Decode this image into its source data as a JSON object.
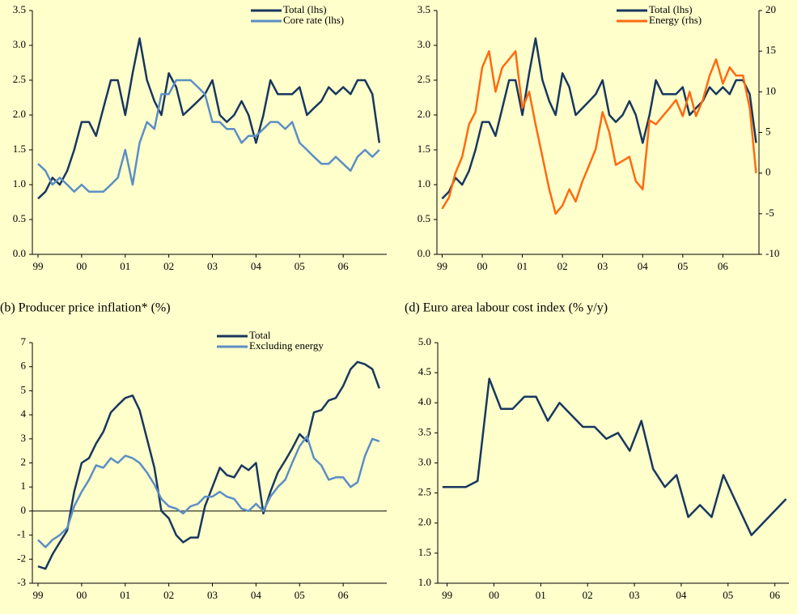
{
  "chart_data": [
    {
      "type": "line",
      "x": [
        1999.0,
        1999.17,
        1999.33,
        1999.5,
        1999.67,
        1999.83,
        2000.0,
        2000.17,
        2000.33,
        2000.5,
        2000.67,
        2000.83,
        2001.0,
        2001.17,
        2001.33,
        2001.5,
        2001.67,
        2001.83,
        2002.0,
        2002.17,
        2002.33,
        2002.5,
        2002.67,
        2002.83,
        2003.0,
        2003.17,
        2003.33,
        2003.5,
        2003.67,
        2003.83,
        2004.0,
        2004.17,
        2004.33,
        2004.5,
        2004.67,
        2004.83,
        2005.0,
        2005.17,
        2005.33,
        2005.5,
        2005.67,
        2005.83,
        2006.0,
        2006.17,
        2006.33,
        2006.5,
        2006.67,
        2006.83
      ],
      "series": [
        {
          "name": "Total (lhs)",
          "color": "#17375e",
          "values": [
            0.8,
            0.9,
            1.1,
            1.0,
            1.2,
            1.5,
            1.9,
            1.9,
            1.7,
            2.1,
            2.5,
            2.5,
            2.0,
            2.6,
            3.1,
            2.5,
            2.2,
            2.0,
            2.6,
            2.4,
            2.0,
            2.1,
            2.2,
            2.3,
            2.5,
            2.0,
            1.9,
            2.0,
            2.2,
            2.0,
            1.6,
            2.0,
            2.5,
            2.3,
            2.3,
            2.3,
            2.4,
            2.0,
            2.1,
            2.2,
            2.4,
            2.3,
            2.4,
            2.3,
            2.5,
            2.5,
            2.3,
            1.6
          ]
        },
        {
          "name": "Core rate (lhs)",
          "color": "#5b8ec5",
          "values": [
            1.3,
            1.2,
            1.0,
            1.1,
            1.0,
            0.9,
            1.0,
            0.9,
            0.9,
            0.9,
            1.0,
            1.1,
            1.5,
            1.0,
            1.6,
            1.9,
            1.8,
            2.3,
            2.3,
            2.5,
            2.5,
            2.5,
            2.4,
            2.3,
            1.9,
            1.9,
            1.8,
            1.8,
            1.6,
            1.7,
            1.7,
            1.8,
            1.9,
            1.9,
            1.8,
            1.9,
            1.6,
            1.5,
            1.4,
            1.3,
            1.3,
            1.4,
            1.3,
            1.2,
            1.4,
            1.5,
            1.4,
            1.5
          ]
        }
      ],
      "xlim": [
        1998.87,
        2007.0
      ],
      "xticks": [
        {
          "value": 1999,
          "label": "99"
        },
        {
          "value": 2000,
          "label": "00"
        },
        {
          "value": 2001,
          "label": "01"
        },
        {
          "value": 2002,
          "label": "02"
        },
        {
          "value": 2003,
          "label": "03"
        },
        {
          "value": 2004,
          "label": "04"
        },
        {
          "value": 2005,
          "label": "05"
        },
        {
          "value": 2006,
          "label": "06"
        }
      ],
      "ylim": [
        0,
        3.5
      ],
      "yticks": [
        {
          "value": 0,
          "label": "0.0"
        },
        0.5,
        {
          "value": 1,
          "label": "1.0"
        },
        1.5,
        {
          "value": 2,
          "label": "2.0"
        },
        2.5,
        {
          "value": 3,
          "label": "3.0"
        },
        3.5
      ]
    },
    {
      "type": "line",
      "x": [
        1999.0,
        1999.17,
        1999.33,
        1999.5,
        1999.67,
        1999.83,
        2000.0,
        2000.17,
        2000.33,
        2000.5,
        2000.67,
        2000.83,
        2001.0,
        2001.17,
        2001.33,
        2001.5,
        2001.67,
        2001.83,
        2002.0,
        2002.17,
        2002.33,
        2002.5,
        2002.67,
        2002.83,
        2003.0,
        2003.17,
        2003.33,
        2003.5,
        2003.67,
        2003.83,
        2004.0,
        2004.17,
        2004.33,
        2004.5,
        2004.67,
        2004.83,
        2005.0,
        2005.17,
        2005.33,
        2005.5,
        2005.67,
        2005.83,
        2006.0,
        2006.17,
        2006.33,
        2006.5,
        2006.67,
        2006.83
      ],
      "series": [
        {
          "name": "Total (lhs)",
          "color": "#17375e",
          "values": [
            0.8,
            0.9,
            1.1,
            1.0,
            1.2,
            1.5,
            1.9,
            1.9,
            1.7,
            2.1,
            2.5,
            2.5,
            2.0,
            2.6,
            3.1,
            2.5,
            2.2,
            2.0,
            2.6,
            2.4,
            2.0,
            2.1,
            2.2,
            2.3,
            2.5,
            2.0,
            1.9,
            2.0,
            2.2,
            2.0,
            1.6,
            2.0,
            2.5,
            2.3,
            2.3,
            2.3,
            2.4,
            2.0,
            2.1,
            2.2,
            2.4,
            2.3,
            2.4,
            2.3,
            2.5,
            2.5,
            2.3,
            1.6
          ]
        },
        {
          "name": "Energy (rhs)",
          "color": "#ff6a10",
          "axis": "y2",
          "values": [
            -4.4,
            -3,
            0,
            2,
            6,
            7.5,
            13,
            15,
            10,
            13,
            14,
            15,
            8,
            10,
            6,
            2,
            -2,
            -5,
            -4,
            -2,
            -3.5,
            -1,
            1,
            3,
            7.5,
            5,
            1,
            1.5,
            2,
            -1,
            -2,
            6.5,
            6,
            7,
            8,
            9,
            7,
            10,
            7,
            9,
            12,
            14,
            11,
            13,
            12,
            12,
            8,
            0
          ]
        }
      ],
      "xlim": [
        1998.87,
        2006.9
      ],
      "xticks": [
        {
          "value": 1999,
          "label": "99"
        },
        {
          "value": 2000,
          "label": "00"
        },
        {
          "value": 2001,
          "label": "01"
        },
        {
          "value": 2002,
          "label": "02"
        },
        {
          "value": 2003,
          "label": "03"
        },
        {
          "value": 2004,
          "label": "04"
        },
        {
          "value": 2005,
          "label": "05"
        },
        {
          "value": 2006,
          "label": "06"
        }
      ],
      "ylim": [
        0,
        3.5
      ],
      "yticks": [
        {
          "value": 0,
          "label": "0.0"
        },
        0.5,
        {
          "value": 1,
          "label": "1.0"
        },
        1.5,
        {
          "value": 2,
          "label": "2.0"
        },
        2.5,
        {
          "value": 3,
          "label": "3.0"
        },
        3.5
      ],
      "y2lim": [
        -10,
        20
      ],
      "y2ticks": [
        -10,
        -5,
        0,
        5,
        10,
        15,
        20
      ]
    },
    {
      "type": "line",
      "title": "(b) Producer price inflation* (%)",
      "x": [
        1999.0,
        1999.17,
        1999.33,
        1999.5,
        1999.67,
        1999.83,
        2000.0,
        2000.17,
        2000.33,
        2000.5,
        2000.67,
        2000.83,
        2001.0,
        2001.17,
        2001.33,
        2001.5,
        2001.67,
        2001.83,
        2002.0,
        2002.17,
        2002.33,
        2002.5,
        2002.67,
        2002.83,
        2003.0,
        2003.17,
        2003.33,
        2003.5,
        2003.67,
        2003.83,
        2004.0,
        2004.17,
        2004.33,
        2004.5,
        2004.67,
        2004.83,
        2005.0,
        2005.17,
        2005.33,
        2005.5,
        2005.67,
        2005.83,
        2006.0,
        2006.17,
        2006.33,
        2006.5,
        2006.67,
        2006.83
      ],
      "series": [
        {
          "name": "Total",
          "color": "#17375e",
          "values": [
            -2.3,
            -2.4,
            -1.8,
            -1.3,
            -0.8,
            0.8,
            2.0,
            2.2,
            2.8,
            3.3,
            4.1,
            4.4,
            4.7,
            4.8,
            4.2,
            3.0,
            1.8,
            0.0,
            -0.3,
            -1.0,
            -1.3,
            -1.1,
            -1.1,
            0.2,
            1.0,
            1.8,
            1.5,
            1.4,
            1.9,
            1.7,
            2.0,
            -0.1,
            0.8,
            1.6,
            2.1,
            2.6,
            3.2,
            2.9,
            4.1,
            4.2,
            4.6,
            4.7,
            5.2,
            5.9,
            6.2,
            6.1,
            5.9,
            5.1
          ]
        },
        {
          "name": "Excluding energy",
          "color": "#5b8ec5",
          "values": [
            -1.2,
            -1.5,
            -1.2,
            -1.0,
            -0.7,
            0.2,
            0.8,
            1.3,
            1.9,
            1.8,
            2.2,
            2.0,
            2.3,
            2.2,
            2.0,
            1.6,
            1.1,
            0.5,
            0.2,
            0.1,
            -0.1,
            0.2,
            0.3,
            0.6,
            0.6,
            0.8,
            0.6,
            0.5,
            0.1,
            0.0,
            0.3,
            0.0,
            0.6,
            1.0,
            1.3,
            2.0,
            2.7,
            3.1,
            2.2,
            1.9,
            1.3,
            1.4,
            1.4,
            1.0,
            1.2,
            2.3,
            3.0,
            2.9
          ]
        }
      ],
      "xlim": [
        1998.87,
        2007.0
      ],
      "xticks": [
        {
          "value": 1999,
          "label": "99"
        },
        {
          "value": 2000,
          "label": "00"
        },
        {
          "value": 2001,
          "label": "01"
        },
        {
          "value": 2002,
          "label": "02"
        },
        {
          "value": 2003,
          "label": "03"
        },
        {
          "value": 2004,
          "label": "04"
        },
        {
          "value": 2005,
          "label": "05"
        },
        {
          "value": 2006,
          "label": "06"
        }
      ],
      "ylim": [
        -3,
        7
      ],
      "yticks": [
        -3,
        -2,
        -1,
        0,
        1,
        2,
        3,
        4,
        5,
        6,
        7
      ],
      "zero_line": true
    },
    {
      "type": "line",
      "title": "(d) Euro area labour cost index (% y/y)",
      "x": [
        1998.9,
        1999.15,
        1999.4,
        1999.65,
        1999.9,
        2000.15,
        2000.4,
        2000.65,
        2000.9,
        2001.15,
        2001.4,
        2001.65,
        2001.9,
        2002.15,
        2002.4,
        2002.65,
        2002.9,
        2003.15,
        2003.4,
        2003.65,
        2003.9,
        2004.15,
        2004.4,
        2004.65,
        2004.9,
        2005.5,
        2006.24
      ],
      "series": [
        {
          "name": null,
          "color": "#17375e",
          "values": [
            2.6,
            2.6,
            2.6,
            2.7,
            4.4,
            3.9,
            3.9,
            4.1,
            4.1,
            3.7,
            4.0,
            3.8,
            3.6,
            3.6,
            3.4,
            3.5,
            3.2,
            3.7,
            2.9,
            2.6,
            2.8,
            2.1,
            2.3,
            2.1,
            2.8,
            1.8,
            2.4
          ]
        }
      ],
      "xlim": [
        1998.8,
        2006.3
      ],
      "xticks": [
        {
          "value": 1999,
          "label": "99"
        },
        {
          "value": 2000,
          "label": "00"
        },
        {
          "value": 2001,
          "label": "01"
        },
        {
          "value": 2002,
          "label": "02"
        },
        {
          "value": 2003,
          "label": "03"
        },
        {
          "value": 2004,
          "label": "04"
        },
        {
          "value": 2005,
          "label": "05"
        },
        {
          "value": 2006,
          "label": "06"
        }
      ],
      "ylim": [
        1,
        5
      ],
      "yticks": [
        {
          "value": 1,
          "label": "1.0"
        },
        1.5,
        {
          "value": 2,
          "label": "2.0"
        },
        2.5,
        {
          "value": 3,
          "label": "3.0"
        },
        3.5,
        {
          "value": 4,
          "label": "4.0"
        },
        4.5,
        {
          "value": 5,
          "label": "5.0"
        }
      ]
    }
  ]
}
